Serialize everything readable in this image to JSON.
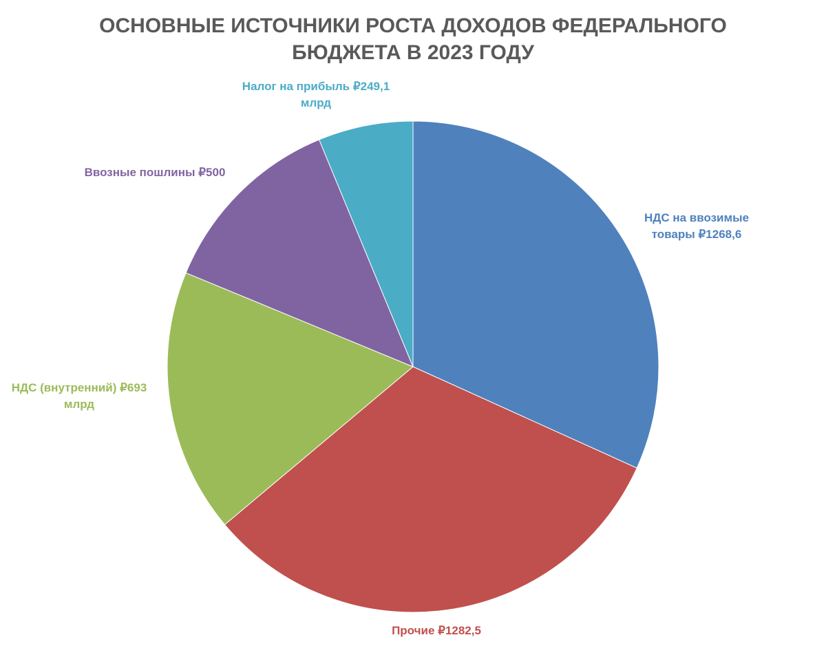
{
  "chart_data": {
    "type": "pie",
    "title_lines": [
      "ОСНОВНЫЕ ИСТОЧНИКИ РОСТА ДОХОДОВ ФЕДЕРАЛЬНОГО",
      "БЮДЖЕТА В 2023 ГОДУ"
    ],
    "slices": [
      {
        "category": "НДС на ввозимые товары",
        "value": 1268.6,
        "label_lines": [
          "НДС на ввозимые",
          "товары ₽1268,6"
        ],
        "color": "#4F81BD"
      },
      {
        "category": "Прочие",
        "value": 1282.5,
        "label_lines": [
          "Прочие ₽1282,5"
        ],
        "color": "#C0504D"
      },
      {
        "category": "НДС (внутренний)",
        "value": 693,
        "label_lines": [
          "НДС (внутренний) ₽693",
          "млрд"
        ],
        "color": "#9BBB59"
      },
      {
        "category": "Ввозные пошлины",
        "value": 500,
        "label_lines": [
          "Ввозные пошлины ₽500"
        ],
        "color": "#8064A2"
      },
      {
        "category": "Налог на прибыль",
        "value": 249.1,
        "label_lines": [
          "Налог на прибыль ₽249,1",
          "млрд"
        ],
        "color": "#4BACC6"
      }
    ],
    "start_angle": "12 o'clock",
    "direction": "clockwise",
    "legend": "none",
    "labels": "outside slices"
  }
}
